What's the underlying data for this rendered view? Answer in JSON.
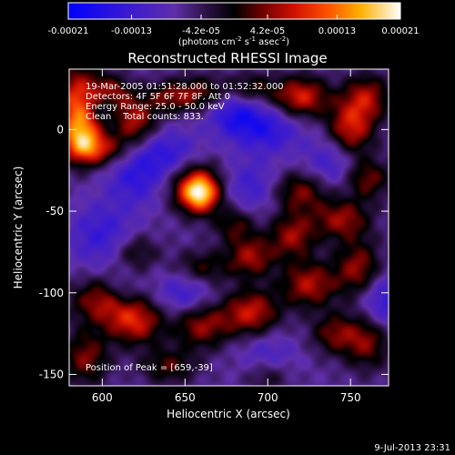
{
  "chart_data": {
    "type": "heatmap",
    "title": "Reconstructed RHESSI Image",
    "xlabel": "Heliocentric X (arcsec)",
    "ylabel": "Heliocentric Y (arcsec)",
    "xlim": [
      580,
      773
    ],
    "ylim": [
      -157,
      37
    ],
    "x_ticks": [
      600,
      650,
      700,
      750
    ],
    "y_ticks": [
      0,
      -50,
      -100,
      -150
    ],
    "colorbar": {
      "range": [
        -0.00021,
        0.00021
      ],
      "ticks": [
        {
          "value": -0.00021,
          "label": "-0.00021"
        },
        {
          "value": -0.00013,
          "label": "-0.00013"
        },
        {
          "value": -4.2e-05,
          "label": "-4.2e-05"
        },
        {
          "value": 4.2e-05,
          "label": "4.2e-05"
        },
        {
          "value": 0.00013,
          "label": "0.00013"
        },
        {
          "value": 0.00021,
          "label": "0.00021"
        }
      ],
      "unit_prefix": "(photons cm",
      "unit_mid1": " s",
      "unit_mid2": " asec",
      "unit_suffix": ")",
      "unit_exp_cm": "-2",
      "unit_exp_s": "-1",
      "unit_exp_asec": "-2"
    },
    "annotations": [
      "19-Mar-2005 01:51:28.000 to 01:52:32.000",
      "Detectors: 4F 5F 6F 7F 8F, Att 0",
      "Energy Range: 25.0 - 50.0 keV",
      "Clean    Total counts: 833."
    ],
    "peak_label": "Position of Peak = [659,-39]",
    "peak": {
      "x": 659,
      "y": -39
    },
    "sources": [
      {
        "x": 659,
        "y": -39,
        "amp": 1.0,
        "sx": 8,
        "sy": 8
      },
      {
        "x": 655,
        "y": -33,
        "amp": 0.45,
        "sx": 12,
        "sy": 12
      },
      {
        "x": 585,
        "y": 14,
        "amp": 0.8,
        "sx": 10,
        "sy": 18
      },
      {
        "x": 588,
        "y": -5,
        "amp": 0.55,
        "sx": 8,
        "sy": 10
      },
      {
        "x": 605,
        "y": 22,
        "amp": 0.55,
        "sx": 9,
        "sy": 8
      },
      {
        "x": 600,
        "y": 15,
        "amp": -0.3,
        "sx": 7,
        "sy": 7
      },
      {
        "x": 620,
        "y": 5,
        "amp": 0.6,
        "sx": 9,
        "sy": 10
      },
      {
        "x": 598,
        "y": -12,
        "amp": 0.55,
        "sx": 12,
        "sy": 7
      },
      {
        "x": 640,
        "y": 20,
        "amp": 0.4,
        "sx": 10,
        "sy": 7
      },
      {
        "x": 660,
        "y": 22,
        "amp": 0.45,
        "sx": 12,
        "sy": 8
      },
      {
        "x": 690,
        "y": 25,
        "amp": 0.4,
        "sx": 10,
        "sy": 7
      },
      {
        "x": 720,
        "y": 20,
        "amp": 0.7,
        "sx": 12,
        "sy": 9
      },
      {
        "x": 760,
        "y": 20,
        "amp": 0.55,
        "sx": 10,
        "sy": 10
      },
      {
        "x": 750,
        "y": 0,
        "amp": 0.7,
        "sx": 10,
        "sy": 12
      },
      {
        "x": 680,
        "y": 10,
        "amp": -0.45,
        "sx": 12,
        "sy": 10
      },
      {
        "x": 700,
        "y": 0,
        "amp": -0.4,
        "sx": 14,
        "sy": 10
      },
      {
        "x": 640,
        "y": -15,
        "amp": -0.4,
        "sx": 14,
        "sy": 10
      },
      {
        "x": 620,
        "y": -30,
        "amp": -0.35,
        "sx": 12,
        "sy": 12
      },
      {
        "x": 690,
        "y": -35,
        "amp": -0.3,
        "sx": 12,
        "sy": 12
      },
      {
        "x": 720,
        "y": -38,
        "amp": 0.5,
        "sx": 12,
        "sy": 9
      },
      {
        "x": 740,
        "y": -20,
        "amp": -0.35,
        "sx": 12,
        "sy": 12
      },
      {
        "x": 760,
        "y": -30,
        "amp": 0.5,
        "sx": 10,
        "sy": 9
      },
      {
        "x": 745,
        "y": -55,
        "amp": 0.55,
        "sx": 12,
        "sy": 9
      },
      {
        "x": 715,
        "y": -65,
        "amp": 0.55,
        "sx": 10,
        "sy": 10
      },
      {
        "x": 690,
        "y": -78,
        "amp": 0.55,
        "sx": 10,
        "sy": 9
      },
      {
        "x": 660,
        "y": -85,
        "amp": 0.4,
        "sx": 12,
        "sy": 8
      },
      {
        "x": 725,
        "y": -95,
        "amp": 0.6,
        "sx": 12,
        "sy": 10
      },
      {
        "x": 755,
        "y": -85,
        "amp": 0.55,
        "sx": 10,
        "sy": 12
      },
      {
        "x": 770,
        "y": -105,
        "amp": -0.4,
        "sx": 10,
        "sy": 12
      },
      {
        "x": 760,
        "y": -130,
        "amp": 0.5,
        "sx": 10,
        "sy": 12
      },
      {
        "x": 740,
        "y": -125,
        "amp": 0.45,
        "sx": 10,
        "sy": 9
      },
      {
        "x": 600,
        "y": -105,
        "amp": 0.55,
        "sx": 14,
        "sy": 10
      },
      {
        "x": 620,
        "y": -118,
        "amp": 0.65,
        "sx": 12,
        "sy": 10
      },
      {
        "x": 612,
        "y": -100,
        "amp": -0.25,
        "sx": 7,
        "sy": 7
      },
      {
        "x": 660,
        "y": -120,
        "amp": 0.55,
        "sx": 12,
        "sy": 10
      },
      {
        "x": 690,
        "y": -112,
        "amp": 0.65,
        "sx": 12,
        "sy": 10
      },
      {
        "x": 590,
        "y": -140,
        "amp": 0.5,
        "sx": 10,
        "sy": 12
      },
      {
        "x": 640,
        "y": -145,
        "amp": 0.4,
        "sx": 12,
        "sy": 8
      },
      {
        "x": 700,
        "y": -140,
        "amp": -0.3,
        "sx": 12,
        "sy": 10
      },
      {
        "x": 650,
        "y": -100,
        "amp": -0.35,
        "sx": 12,
        "sy": 10
      },
      {
        "x": 600,
        "y": -65,
        "amp": -0.35,
        "sx": 14,
        "sy": 14
      },
      {
        "x": 680,
        "y": -58,
        "amp": 0.4,
        "sx": 9,
        "sy": 8
      },
      {
        "x": 620,
        "y": -75,
        "amp": 0.35,
        "sx": 10,
        "sy": 8
      },
      {
        "x": 700,
        "y": -150,
        "amp": 0.35,
        "sx": 10,
        "sy": 8
      }
    ]
  },
  "footer": {
    "date": "9-Jul-2013 23:31"
  }
}
